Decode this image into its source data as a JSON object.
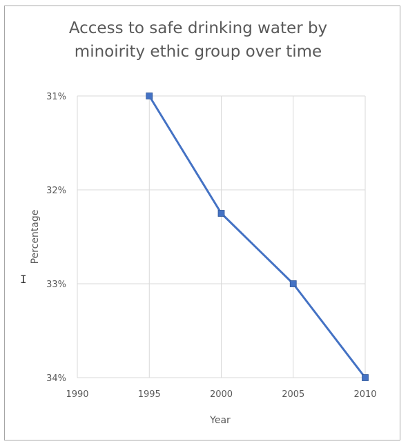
{
  "chart_data": {
    "type": "line",
    "title_lines": [
      "Access to safe drinking water by",
      "minoirity ethic group over time"
    ],
    "xlabel": "Year",
    "ylabel": "Percentage",
    "x": [
      1995,
      2000,
      2005,
      2010
    ],
    "x_ticks": [
      "1990",
      "1995",
      "2000",
      "2005",
      "2010"
    ],
    "xlim": [
      1990,
      2010
    ],
    "y_ticks": [
      "31%",
      "32%",
      "33%",
      "34%"
    ],
    "ylim": [
      31,
      34
    ],
    "y_reversed": true,
    "series": [
      {
        "values": [
          31.0,
          32.25,
          33.0,
          34.0
        ]
      }
    ],
    "grid": true,
    "legend": "none",
    "colors": {
      "line": "#4472c4",
      "marker": "#4472c4",
      "grid": "#d9d9d9",
      "text": "#595959"
    }
  }
}
